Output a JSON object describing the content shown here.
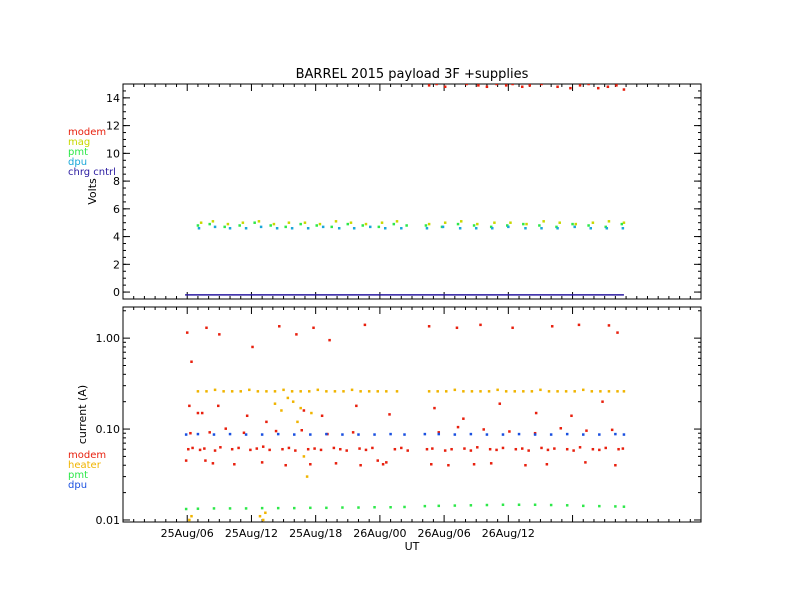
{
  "chart_data": [
    {
      "type": "scatter",
      "title": "BARREL 2015 payload 3F +supplies",
      "ylabel": "Volts",
      "xlabel": "",
      "xlim": [
        0,
        54
      ],
      "ylim": [
        -0.5,
        15
      ],
      "yscale": "linear",
      "y_ticks": [
        0,
        2,
        4,
        6,
        8,
        10,
        12,
        14
      ],
      "y_tick_labels": [
        "0",
        "2",
        "4",
        "6",
        "8",
        "10",
        "12",
        "14"
      ],
      "x_ticks": [
        6,
        12,
        18,
        24,
        30,
        36,
        42
      ],
      "legend_position": "left",
      "series": [
        {
          "name": "modem",
          "color": "#e8200e",
          "x": [
            28.6,
            29.3,
            30.1,
            32.1,
            33.2,
            34.0,
            34.9,
            35.8,
            36.4,
            37.3,
            38.0,
            39.1,
            40.6,
            41.8,
            42.7,
            43.5,
            44.4,
            45.3,
            46.1,
            46.8
          ],
          "y": [
            14.9,
            15.0,
            14.8,
            15.0,
            14.9,
            14.8,
            15.0,
            14.9,
            15.0,
            14.8,
            14.9,
            15.0,
            14.8,
            14.7,
            14.9,
            15.0,
            14.7,
            14.8,
            14.9,
            14.6
          ]
        },
        {
          "name": "mag",
          "color": "#c8d800",
          "x": [
            7.3,
            8.4,
            9.8,
            11.2,
            12.7,
            14.1,
            15.5,
            17.0,
            18.4,
            19.9,
            21.3,
            22.7,
            24.2,
            25.6,
            28.6,
            30.1,
            31.6,
            33.1,
            34.7,
            36.2,
            37.7,
            39.3,
            40.8,
            42.3,
            43.9,
            45.4,
            46.8
          ],
          "y": [
            5.0,
            5.1,
            4.9,
            5.0,
            5.1,
            4.9,
            5.0,
            5.0,
            4.9,
            5.1,
            5.0,
            4.9,
            5.0,
            5.1,
            4.9,
            5.0,
            5.1,
            4.9,
            5.0,
            5.0,
            4.9,
            5.1,
            5.0,
            4.9,
            5.0,
            5.1,
            5.0
          ]
        },
        {
          "name": "pmt",
          "color": "#2ee84a",
          "x": [
            7.0,
            8.1,
            9.5,
            10.9,
            12.3,
            13.8,
            15.2,
            16.6,
            18.1,
            19.5,
            21.0,
            22.4,
            23.9,
            25.3,
            26.5,
            28.3,
            29.8,
            31.3,
            32.8,
            34.4,
            35.9,
            37.4,
            38.9,
            40.5,
            42.0,
            43.5,
            45.1,
            46.6
          ],
          "y": [
            4.8,
            4.9,
            4.7,
            4.8,
            5.0,
            4.8,
            4.7,
            4.9,
            4.8,
            4.7,
            4.9,
            4.8,
            4.7,
            4.9,
            4.8,
            4.8,
            4.7,
            4.9,
            4.8,
            4.7,
            4.8,
            4.9,
            4.8,
            4.7,
            4.9,
            4.8,
            4.7,
            4.9
          ]
        },
        {
          "name": "dpu",
          "color": "#1aa8d8",
          "x": [
            7.1,
            8.6,
            10.0,
            11.5,
            12.9,
            14.4,
            15.8,
            17.3,
            18.7,
            20.2,
            21.6,
            23.1,
            24.5,
            26.0,
            28.4,
            29.9,
            31.5,
            33.0,
            34.5,
            36.0,
            37.6,
            39.1,
            40.6,
            42.2,
            43.7,
            45.2,
            46.7
          ],
          "y": [
            4.6,
            4.7,
            4.6,
            4.6,
            4.7,
            4.6,
            4.6,
            4.6,
            4.7,
            4.6,
            4.6,
            4.7,
            4.6,
            4.6,
            4.6,
            4.7,
            4.6,
            4.6,
            4.6,
            4.7,
            4.6,
            4.6,
            4.6,
            4.7,
            4.6,
            4.6,
            4.6
          ]
        },
        {
          "name": "chrg cntrl",
          "color": "#2a1aa0",
          "x": [
            5.8,
            46.8
          ],
          "y": [
            -0.2,
            -0.2
          ],
          "mode": "line"
        }
      ]
    },
    {
      "type": "scatter",
      "title": "",
      "ylabel": "current (A)",
      "xlabel": "UT",
      "xlim": [
        0,
        54
      ],
      "ylim": [
        0.0095,
        2.2
      ],
      "yscale": "log",
      "y_ticks": [
        0.01,
        0.1,
        1.0
      ],
      "y_tick_labels": [
        "0.01",
        "0.10",
        "1.00"
      ],
      "x_ticks": [
        6,
        12,
        18,
        24,
        30,
        36,
        42
      ],
      "x_tick_labels": [
        "25Aug/06",
        "25Aug/12",
        "25Aug/18",
        "26Aug/00",
        "26Aug/06",
        "26Aug/12"
      ],
      "x_label_ticks": [
        6,
        12,
        18,
        24,
        30,
        36
      ],
      "legend_position": "left",
      "series": [
        {
          "name": "modem",
          "color": "#e8200e",
          "x": [
            5.9,
            6.1,
            6.3,
            6.5,
            7.2,
            7.6,
            8.1,
            8.6,
            9.1,
            9.6,
            10.2,
            10.8,
            11.3,
            11.9,
            12.5,
            13.1,
            13.7,
            14.3,
            14.9,
            15.5,
            16.1,
            16.7,
            17.3,
            17.9,
            18.5,
            19.1,
            19.7,
            20.3,
            20.9,
            21.5,
            22.1,
            22.7,
            23.3,
            23.8,
            24.3,
            25.4,
            26.0,
            26.6,
            28.4,
            28.9,
            29.5,
            30.1,
            30.7,
            31.3,
            31.9,
            32.5,
            33.1,
            33.7,
            34.3,
            34.9,
            35.5,
            36.1,
            36.7,
            37.3,
            37.9,
            38.5,
            39.1,
            39.7,
            40.3,
            40.9,
            41.5,
            42.1,
            42.7,
            43.3,
            43.9,
            44.5,
            45.1,
            45.7,
            46.3,
            46.7,
            6.0,
            6.4,
            7.8,
            9.0,
            12.1,
            14.6,
            16.2,
            17.8,
            19.3,
            22.6,
            28.6,
            31.2,
            33.4,
            36.4,
            40.1,
            42.6,
            45.4,
            46.2,
            7.4,
            8.9,
            11.6,
            13.4,
            16.9,
            18.6,
            21.8,
            24.9,
            29.1,
            31.8,
            35.2,
            38.6,
            41.9,
            44.8,
            6.2,
            7.0,
            7.7,
            8.4,
            10.4,
            13.0,
            15.2,
            17.5,
            19.9,
            22.2,
            24.6,
            28.8,
            30.4,
            32.8,
            34.4,
            37.6,
            39.6,
            43.2,
            46.0
          ],
          "y": [
            0.045,
            0.06,
            0.09,
            0.062,
            0.059,
            0.061,
            0.092,
            0.058,
            0.063,
            0.101,
            0.06,
            0.062,
            0.091,
            0.059,
            0.061,
            0.064,
            0.059,
            0.095,
            0.06,
            0.062,
            0.058,
            0.097,
            0.06,
            0.061,
            0.059,
            0.088,
            0.062,
            0.06,
            0.058,
            0.092,
            0.061,
            0.059,
            0.062,
            0.045,
            0.041,
            0.06,
            0.062,
            0.058,
            0.06,
            0.061,
            0.092,
            0.058,
            0.06,
            0.105,
            0.061,
            0.058,
            0.063,
            0.099,
            0.06,
            0.059,
            0.062,
            0.094,
            0.06,
            0.061,
            0.058,
            0.09,
            0.062,
            0.059,
            0.061,
            0.102,
            0.06,
            0.058,
            0.063,
            0.096,
            0.06,
            0.059,
            0.062,
            0.098,
            0.06,
            0.061,
            1.15,
            0.55,
            1.3,
            1.1,
            0.8,
            1.35,
            1.1,
            1.3,
            0.95,
            1.4,
            1.35,
            1.3,
            1.4,
            1.3,
            1.35,
            1.4,
            1.38,
            1.15,
            0.15,
            0.18,
            0.14,
            0.12,
            0.16,
            0.14,
            0.18,
            0.145,
            0.17,
            0.13,
            0.19,
            0.15,
            0.14,
            0.2,
            0.18,
            0.15,
            0.045,
            0.042,
            0.041,
            0.043,
            0.04,
            0.041,
            0.042,
            0.04,
            0.043,
            0.041,
            0.04,
            0.041,
            0.042,
            0.04,
            0.041,
            0.043,
            0.04
          ]
        },
        {
          "name": "heater",
          "color": "#f0b400",
          "x": [
            7.0,
            7.8,
            8.6,
            9.4,
            10.2,
            11.0,
            11.8,
            12.6,
            13.4,
            14.2,
            15.0,
            15.8,
            16.6,
            17.4,
            18.2,
            19.0,
            19.8,
            20.6,
            21.4,
            22.2,
            23.0,
            23.8,
            24.6,
            25.6,
            28.6,
            29.4,
            30.2,
            31.0,
            31.8,
            32.6,
            33.4,
            34.2,
            35.0,
            35.8,
            36.6,
            37.4,
            38.2,
            39.0,
            39.8,
            40.6,
            41.4,
            42.2,
            43.0,
            43.8,
            44.6,
            45.4,
            46.2,
            46.8,
            6.2,
            6.4,
            12.8,
            13.1,
            13.3,
            14.2,
            14.8,
            15.4,
            15.9,
            16.3,
            16.6,
            16.9,
            17.2,
            17.6
          ],
          "y": [
            0.26,
            0.26,
            0.27,
            0.26,
            0.26,
            0.26,
            0.27,
            0.26,
            0.26,
            0.26,
            0.27,
            0.26,
            0.26,
            0.26,
            0.27,
            0.26,
            0.26,
            0.26,
            0.27,
            0.26,
            0.26,
            0.26,
            0.26,
            0.26,
            0.26,
            0.26,
            0.26,
            0.27,
            0.26,
            0.26,
            0.26,
            0.26,
            0.27,
            0.26,
            0.26,
            0.26,
            0.26,
            0.27,
            0.26,
            0.26,
            0.26,
            0.26,
            0.27,
            0.26,
            0.26,
            0.26,
            0.26,
            0.26,
            0.01,
            0.011,
            0.011,
            0.01,
            0.012,
            0.19,
            0.16,
            0.22,
            0.2,
            0.12,
            0.17,
            0.05,
            0.03,
            0.15
          ]
        },
        {
          "name": "pmt",
          "color": "#2ee84a",
          "x": [
            5.9,
            7.0,
            8.5,
            10.0,
            11.5,
            13.0,
            14.5,
            16.0,
            17.5,
            19.0,
            20.5,
            22.0,
            23.5,
            25.0,
            26.3,
            28.2,
            29.5,
            31.0,
            32.5,
            34.0,
            35.5,
            37.0,
            38.5,
            40.0,
            41.5,
            43.0,
            44.5,
            46.0,
            46.8
          ],
          "y": [
            0.0132,
            0.0133,
            0.0134,
            0.0134,
            0.0134,
            0.0135,
            0.0135,
            0.0135,
            0.0136,
            0.0136,
            0.0137,
            0.0137,
            0.0138,
            0.0138,
            0.0139,
            0.0142,
            0.0143,
            0.0144,
            0.0145,
            0.0146,
            0.0147,
            0.0147,
            0.0147,
            0.0146,
            0.0145,
            0.0143,
            0.0142,
            0.0141,
            0.014
          ]
        },
        {
          "name": "dpu",
          "color": "#1a50e0",
          "x": [
            5.9,
            7.0,
            8.5,
            10.0,
            11.5,
            13.0,
            14.5,
            16.0,
            17.5,
            19.0,
            20.5,
            22.0,
            23.5,
            25.0,
            26.3,
            28.2,
            29.5,
            31.0,
            32.5,
            34.0,
            35.5,
            37.0,
            38.5,
            40.0,
            41.5,
            43.0,
            44.5,
            46.0,
            46.8
          ],
          "y": [
            0.087,
            0.088,
            0.087,
            0.088,
            0.087,
            0.087,
            0.088,
            0.087,
            0.087,
            0.088,
            0.087,
            0.087,
            0.087,
            0.088,
            0.087,
            0.088,
            0.088,
            0.087,
            0.088,
            0.087,
            0.087,
            0.088,
            0.087,
            0.087,
            0.088,
            0.087,
            0.087,
            0.088,
            0.087
          ]
        }
      ]
    }
  ]
}
